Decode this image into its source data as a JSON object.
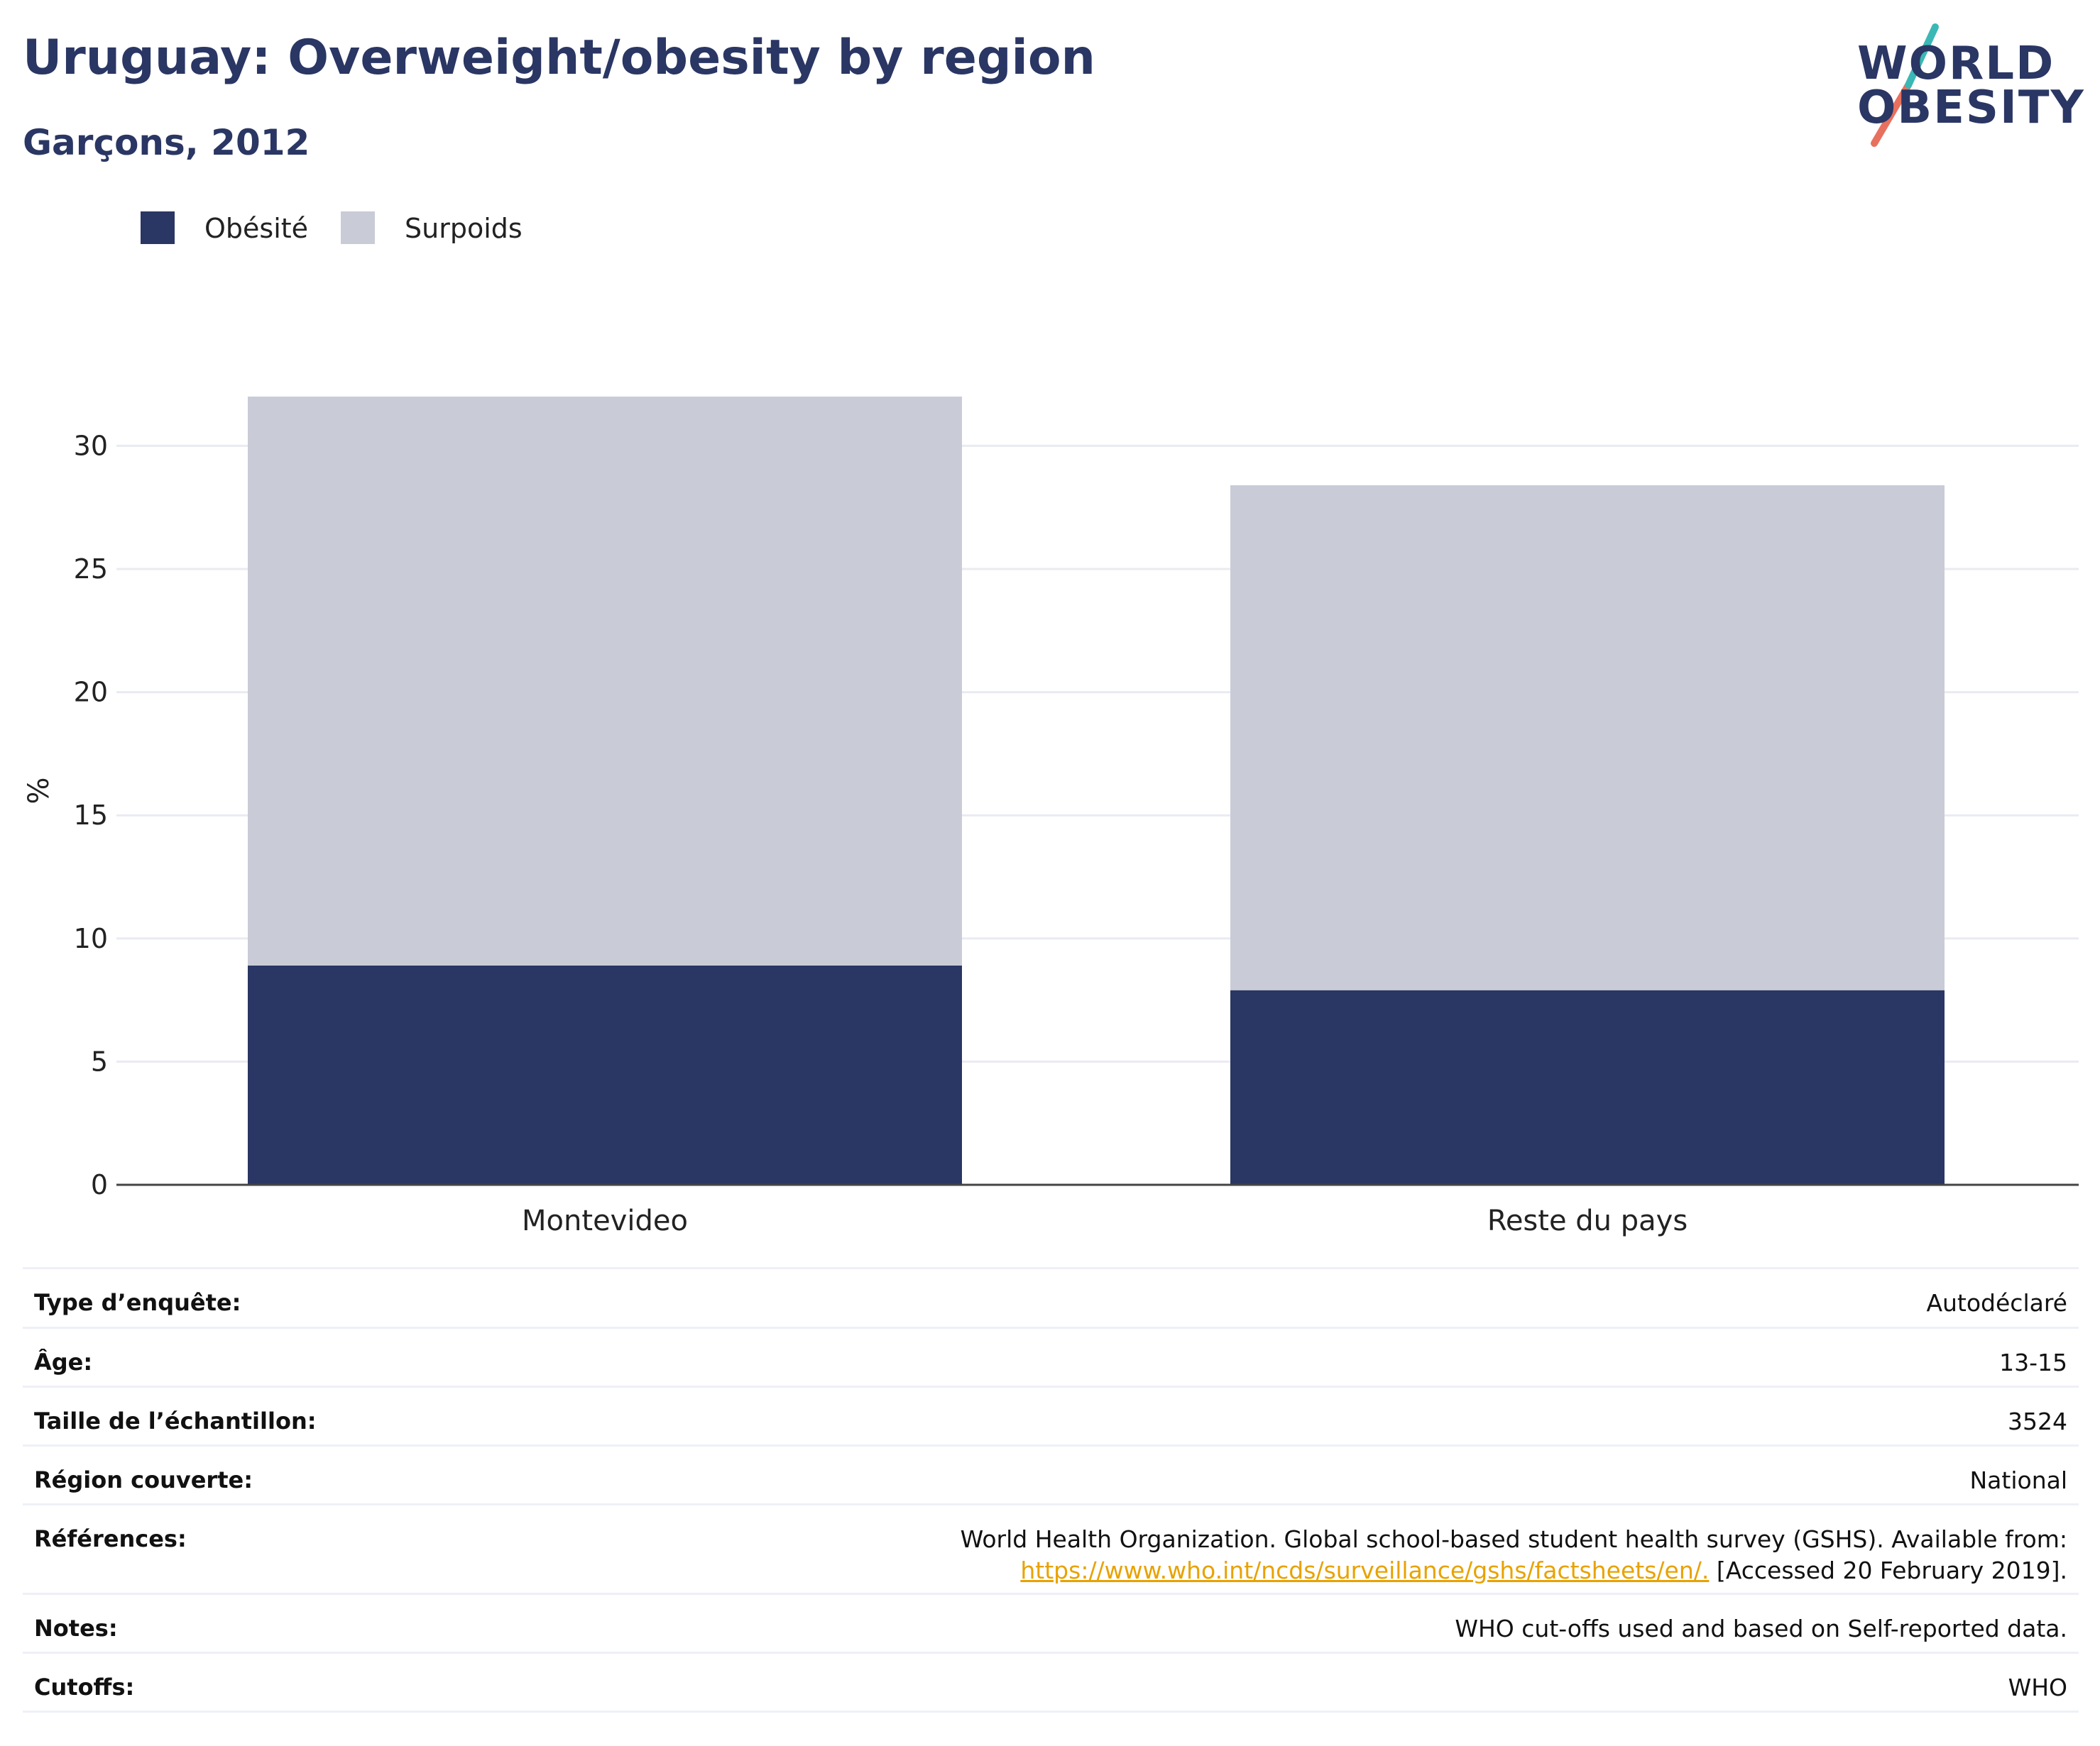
{
  "title": "Uruguay: Overweight/obesity by region",
  "subtitle": "Garçons, 2012",
  "logo": {
    "line1": "WORLD",
    "line2": "OBESITY"
  },
  "legend": [
    {
      "label": "Obésité",
      "color": "#2a3663"
    },
    {
      "label": "Surpoids",
      "color": "#c9ccd7"
    }
  ],
  "chart_data": {
    "type": "bar",
    "stacked": true,
    "categories": [
      "Montevideo",
      "Reste du pays"
    ],
    "series": [
      {
        "name": "Obésité",
        "color": "#2a3663",
        "values": [
          8.9,
          7.9
        ]
      },
      {
        "name": "Surpoids",
        "color": "#c9ccd7",
        "values": [
          23.1,
          20.5
        ]
      }
    ],
    "ylabel": "%",
    "xlabel": "",
    "ylim": [
      0,
      32
    ],
    "yticks": [
      0,
      5,
      10,
      15,
      20,
      25,
      30
    ],
    "grid": true,
    "legend_position": "top-left"
  },
  "info": [
    {
      "label": "Type d’enquête:",
      "value": "Autodéclaré"
    },
    {
      "label": "Âge:",
      "value": "13-15"
    },
    {
      "label": "Taille de l’échantillon:",
      "value": "3524"
    },
    {
      "label": "Région couverte:",
      "value": "National"
    },
    {
      "label": "Références:",
      "value": "World Health Organization. Global school-based student health survey (GSHS). Available from:",
      "link": "https://www.who.int/ncds/surveillance/gshs/factsheets/en/.",
      "suffix": " [Accessed 20 February 2019]."
    },
    {
      "label": "Notes:",
      "value": "WHO cut-offs used and based on Self-reported data."
    },
    {
      "label": "Cutoffs:",
      "value": "WHO"
    }
  ]
}
